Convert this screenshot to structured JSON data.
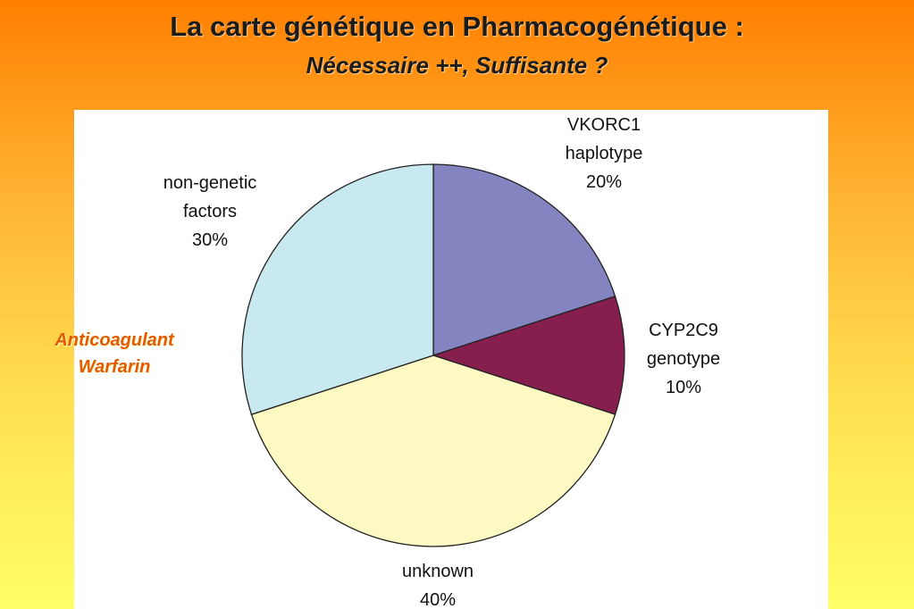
{
  "title": "La carte génétique en Pharmacogénétique :",
  "subtitle": "Nécessaire ++,  Suffisante ?",
  "annotation": "Anticoagulant Warfarin",
  "chart_data": {
    "type": "pie",
    "categories": [
      "VKORC1 haplotype",
      "CYP2C9 genotype",
      "unknown",
      "non-genetic factors"
    ],
    "values": [
      20,
      10,
      40,
      30
    ],
    "value_labels": [
      "20%",
      "10%",
      "40%",
      "30%"
    ],
    "colors": [
      "#8484c0",
      "#861f4e",
      "#fdf9c2",
      "#c9e9f1"
    ]
  }
}
